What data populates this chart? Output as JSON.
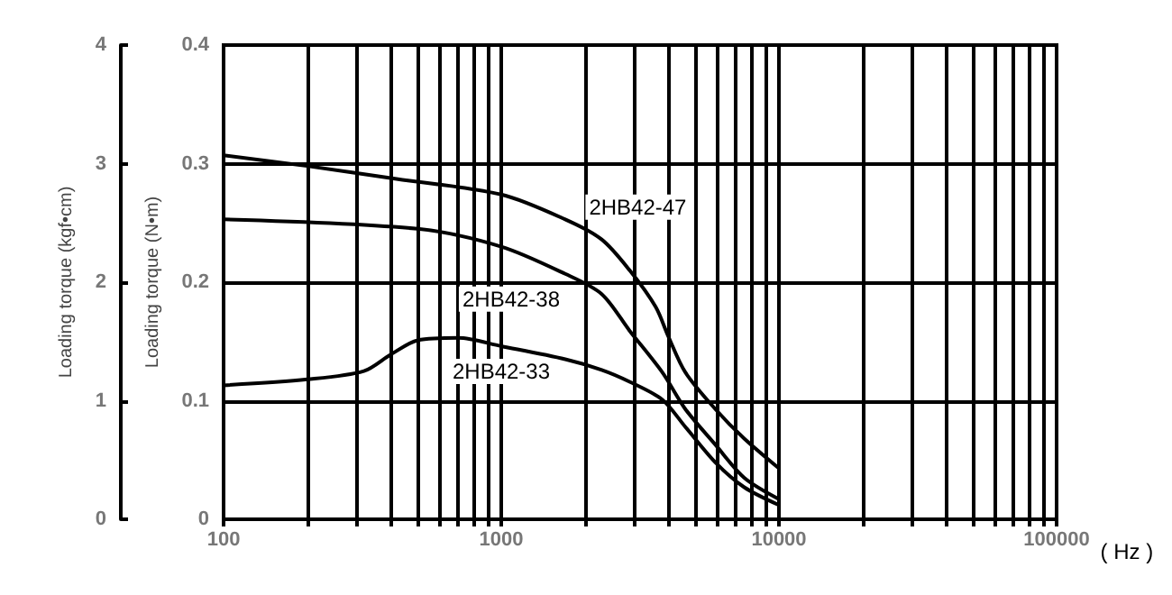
{
  "chart_data": {
    "type": "line",
    "xlabel": "( Hz )",
    "ylabel": "Loading torque (N•m)",
    "y2label": "Loading torque (kgf•cm)",
    "log": "x",
    "grid": true,
    "legend": false,
    "marker": "none",
    "line_style": "solid",
    "xlim": [
      100,
      100000
    ],
    "ylim": [
      0,
      0.4
    ],
    "y2lim": [
      0,
      4
    ],
    "xticks": [
      100,
      {
        "value": 200,
        "label": null
      },
      {
        "value": 300,
        "label": null
      },
      {
        "value": 400,
        "label": null
      },
      {
        "value": 500,
        "label": null
      },
      {
        "value": 600,
        "label": null
      },
      {
        "value": 700,
        "label": null
      },
      {
        "value": 800,
        "label": null
      },
      {
        "value": 900,
        "label": null
      },
      1000,
      {
        "value": 2000,
        "label": null
      },
      {
        "value": 3000,
        "label": null
      },
      {
        "value": 4000,
        "label": null
      },
      {
        "value": 5000,
        "label": null
      },
      {
        "value": 6000,
        "label": null
      },
      {
        "value": 7000,
        "label": null
      },
      {
        "value": 8000,
        "label": null
      },
      {
        "value": 9000,
        "label": null
      },
      10000,
      {
        "value": 20000,
        "label": null
      },
      {
        "value": 30000,
        "label": null
      },
      {
        "value": 40000,
        "label": null
      },
      {
        "value": 50000,
        "label": null
      },
      {
        "value": 60000,
        "label": null
      },
      {
        "value": 70000,
        "label": null
      },
      {
        "value": 80000,
        "label": null
      },
      {
        "value": 90000,
        "label": null
      },
      100000
    ],
    "yticks": [
      0,
      0.1,
      0.2,
      0.3,
      0.4
    ],
    "y2ticks": [
      0,
      1,
      2,
      3,
      4
    ],
    "series": [
      {
        "name": "2HB42-47",
        "color": "#000000",
        "x": [
          100,
          200,
          420,
          1000,
          1700,
          2300,
          2900,
          3600,
          4000,
          4600,
          5900,
          7500,
          10000
        ],
        "values": [
          0.307,
          0.298,
          0.287,
          0.274,
          0.253,
          0.236,
          0.21,
          0.179,
          0.154,
          0.124,
          0.093,
          0.068,
          0.043
        ]
      },
      {
        "name": "2HB42-38",
        "color": "#000000",
        "x": [
          100,
          500,
          1000,
          1700,
          2300,
          2900,
          3800,
          4600,
          5900,
          7500,
          10000
        ],
        "values": [
          0.253,
          0.245,
          0.23,
          0.207,
          0.19,
          0.159,
          0.124,
          0.093,
          0.063,
          0.035,
          0.017
        ]
      },
      {
        "name": "2HB42-33",
        "color": "#000000",
        "x": [
          100,
          200,
          320,
          400,
          500,
          700,
          1000,
          1700,
          2300,
          2900,
          3800,
          4600,
          5900,
          7500,
          10000
        ],
        "values": [
          0.113,
          0.118,
          0.125,
          0.139,
          0.151,
          0.153,
          0.146,
          0.135,
          0.126,
          0.116,
          0.101,
          0.078,
          0.048,
          0.027,
          0.012
        ]
      }
    ]
  }
}
